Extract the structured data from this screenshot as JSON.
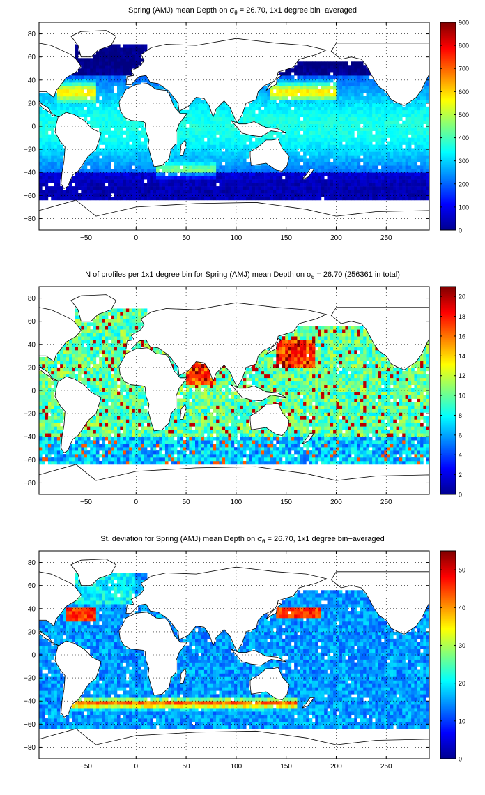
{
  "chart_data": [
    {
      "type": "heatmap",
      "title": "Spring (AMJ) mean Depth on σ",
      "title_sub": "θ",
      "title_rest": " = 26.70, 1x1 degree bin−averaged",
      "x_ticks": [
        "−50",
        "0",
        "50",
        "100",
        "150",
        "200",
        "250"
      ],
      "x_tick_values": [
        -50,
        0,
        50,
        100,
        150,
        200,
        250
      ],
      "y_ticks": [
        "80",
        "60",
        "40",
        "20",
        "0",
        "−20",
        "−40",
        "−60",
        "−80"
      ],
      "y_tick_values": [
        80,
        60,
        40,
        20,
        0,
        -20,
        -40,
        -60,
        -80
      ],
      "xlim": [
        -97,
        293
      ],
      "ylim": [
        -90,
        90
      ],
      "grid": "dotted",
      "colorbar_ticks": [
        "0",
        "100",
        "200",
        "300",
        "400",
        "500",
        "600",
        "700",
        "800",
        "900"
      ],
      "colorbar_values": [
        0,
        100,
        200,
        300,
        400,
        500,
        600,
        700,
        800,
        900
      ],
      "colorbar_range": [
        0,
        900
      ],
      "colormap": "jet"
    },
    {
      "type": "heatmap",
      "title": "N of profiles per 1x1 degree bin for Spring (AMJ) mean Depth on σ",
      "title_sub": "θ",
      "title_rest": " = 26.70 (256361 in total)",
      "x_ticks": [
        "−50",
        "0",
        "50",
        "100",
        "150",
        "200",
        "250"
      ],
      "x_tick_values": [
        -50,
        0,
        50,
        100,
        150,
        200,
        250
      ],
      "y_ticks": [
        "80",
        "60",
        "40",
        "20",
        "0",
        "−20",
        "−40",
        "−60",
        "−80"
      ],
      "y_tick_values": [
        80,
        60,
        40,
        20,
        0,
        -20,
        -40,
        -60,
        -80
      ],
      "xlim": [
        -97,
        293
      ],
      "ylim": [
        -90,
        90
      ],
      "grid": "dotted",
      "colorbar_ticks": [
        "0",
        "2",
        "4",
        "6",
        "8",
        "10",
        "12",
        "14",
        "16",
        "18",
        "20"
      ],
      "colorbar_values": [
        0,
        2,
        4,
        6,
        8,
        10,
        12,
        14,
        16,
        18,
        20
      ],
      "colorbar_range": [
        0,
        21
      ],
      "colormap": "jet"
    },
    {
      "type": "heatmap",
      "title": "St. deviation for Spring (AMJ) mean Depth on σ",
      "title_sub": "θ",
      "title_rest": " = 26.70, 1x1 degree bin−averaged",
      "x_ticks": [
        "−50",
        "0",
        "50",
        "100",
        "150",
        "200",
        "250"
      ],
      "x_tick_values": [
        -50,
        0,
        50,
        100,
        150,
        200,
        250
      ],
      "y_ticks": [
        "80",
        "60",
        "40",
        "20",
        "0",
        "−20",
        "−40",
        "−60",
        "−80"
      ],
      "y_tick_values": [
        80,
        60,
        40,
        20,
        0,
        -20,
        -40,
        -60,
        -80
      ],
      "xlim": [
        -97,
        293
      ],
      "ylim": [
        -90,
        90
      ],
      "grid": "dotted",
      "colorbar_ticks": [
        "0",
        "10",
        "20",
        "30",
        "40",
        "50"
      ],
      "colorbar_values": [
        0,
        10,
        20,
        30,
        40,
        50
      ],
      "colorbar_range": [
        0,
        55
      ],
      "colormap": "jet"
    }
  ]
}
